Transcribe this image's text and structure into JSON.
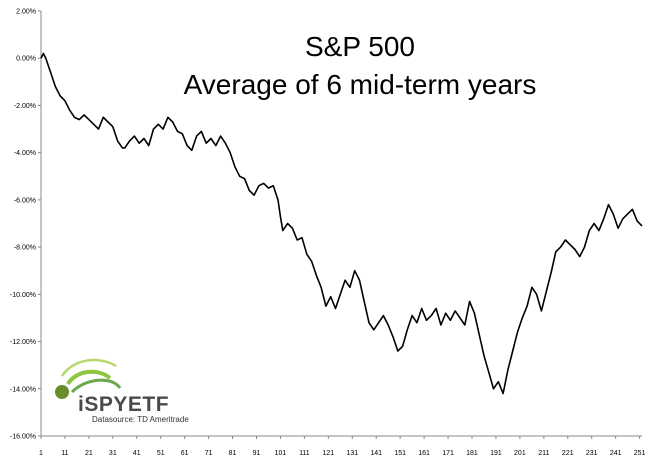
{
  "chart_data": {
    "type": "line",
    "title": [
      "S&P 500",
      "Average of 6 mid-term years"
    ],
    "xlabel": "",
    "ylabel": "",
    "ylim": [
      -0.16,
      0.02
    ],
    "xlim": [
      1,
      252
    ],
    "yticks": [
      0.02,
      0.0,
      -0.02,
      -0.04,
      -0.06,
      -0.08,
      -0.1,
      -0.12,
      -0.14,
      -0.16
    ],
    "ytick_labels": [
      "2.00%",
      "0.00%",
      "-2.00%",
      "-4.00%",
      "-6.00%",
      "-8.00%",
      "-10.00%",
      "-12.00%",
      "-14.00%",
      "-16.00%"
    ],
    "xticks": [
      1,
      11,
      21,
      31,
      41,
      51,
      61,
      71,
      81,
      91,
      101,
      111,
      121,
      131,
      141,
      151,
      161,
      171,
      181,
      191,
      201,
      211,
      221,
      231,
      241,
      251
    ],
    "grid": false,
    "legend": "none",
    "line_color": "#000000",
    "series": [
      {
        "keypoints_x": [
          1,
          2,
          3,
          5,
          7,
          9,
          11,
          13,
          15,
          17,
          19,
          21,
          23,
          25,
          27,
          29,
          31,
          33,
          35,
          36,
          38,
          40,
          42,
          44,
          46,
          48,
          50,
          52,
          54,
          56,
          58,
          60,
          62,
          64,
          66,
          68,
          70,
          72,
          74,
          76,
          78,
          80,
          82,
          84,
          86,
          88,
          90,
          92,
          94,
          96,
          98,
          100,
          101,
          102,
          104,
          106,
          108,
          110,
          112,
          114,
          116,
          118,
          120,
          122,
          124,
          126,
          128,
          130,
          132,
          134,
          136,
          138,
          140,
          142,
          144,
          146,
          148,
          150,
          152,
          154,
          156,
          158,
          160,
          162,
          164,
          166,
          168,
          170,
          172,
          174,
          176,
          178,
          180,
          182,
          184,
          186,
          188,
          190,
          192,
          194,
          196,
          198,
          200,
          202,
          204,
          206,
          208,
          210,
          212,
          214,
          216,
          218,
          220,
          222,
          224,
          226,
          228,
          230,
          232,
          234,
          236,
          238,
          240,
          242,
          244,
          246,
          248,
          250,
          252
        ],
        "values": [
          0.0,
          0.002,
          0.0,
          -0.006,
          -0.012,
          -0.016,
          -0.018,
          -0.022,
          -0.025,
          -0.026,
          -0.024,
          -0.026,
          -0.028,
          -0.03,
          -0.025,
          -0.027,
          -0.029,
          -0.035,
          -0.038,
          -0.038,
          -0.035,
          -0.033,
          -0.036,
          -0.034,
          -0.037,
          -0.03,
          -0.028,
          -0.03,
          -0.025,
          -0.027,
          -0.031,
          -0.032,
          -0.037,
          -0.039,
          -0.033,
          -0.031,
          -0.036,
          -0.034,
          -0.037,
          -0.033,
          -0.036,
          -0.04,
          -0.046,
          -0.05,
          -0.051,
          -0.056,
          -0.058,
          -0.054,
          -0.053,
          -0.055,
          -0.054,
          -0.06,
          -0.067,
          -0.073,
          -0.07,
          -0.072,
          -0.077,
          -0.076,
          -0.083,
          -0.086,
          -0.092,
          -0.097,
          -0.105,
          -0.101,
          -0.106,
          -0.1,
          -0.094,
          -0.097,
          -0.09,
          -0.094,
          -0.103,
          -0.112,
          -0.115,
          -0.112,
          -0.109,
          -0.113,
          -0.118,
          -0.124,
          -0.122,
          -0.115,
          -0.109,
          -0.112,
          -0.106,
          -0.111,
          -0.109,
          -0.106,
          -0.113,
          -0.108,
          -0.111,
          -0.107,
          -0.11,
          -0.113,
          -0.103,
          -0.108,
          -0.117,
          -0.126,
          -0.133,
          -0.14,
          -0.137,
          -0.142,
          -0.132,
          -0.124,
          -0.116,
          -0.11,
          -0.105,
          -0.097,
          -0.1,
          -0.107,
          -0.099,
          -0.091,
          -0.082,
          -0.08,
          -0.077,
          -0.079,
          -0.081,
          -0.084,
          -0.08,
          -0.073,
          -0.07,
          -0.073,
          -0.068,
          -0.062,
          -0.066,
          -0.072,
          -0.068,
          -0.066,
          -0.064,
          -0.069,
          -0.071
        ]
      }
    ]
  },
  "branding": {
    "logo_text": "iSPYETF",
    "datasource": "Datasource: TD Ameritrade"
  }
}
